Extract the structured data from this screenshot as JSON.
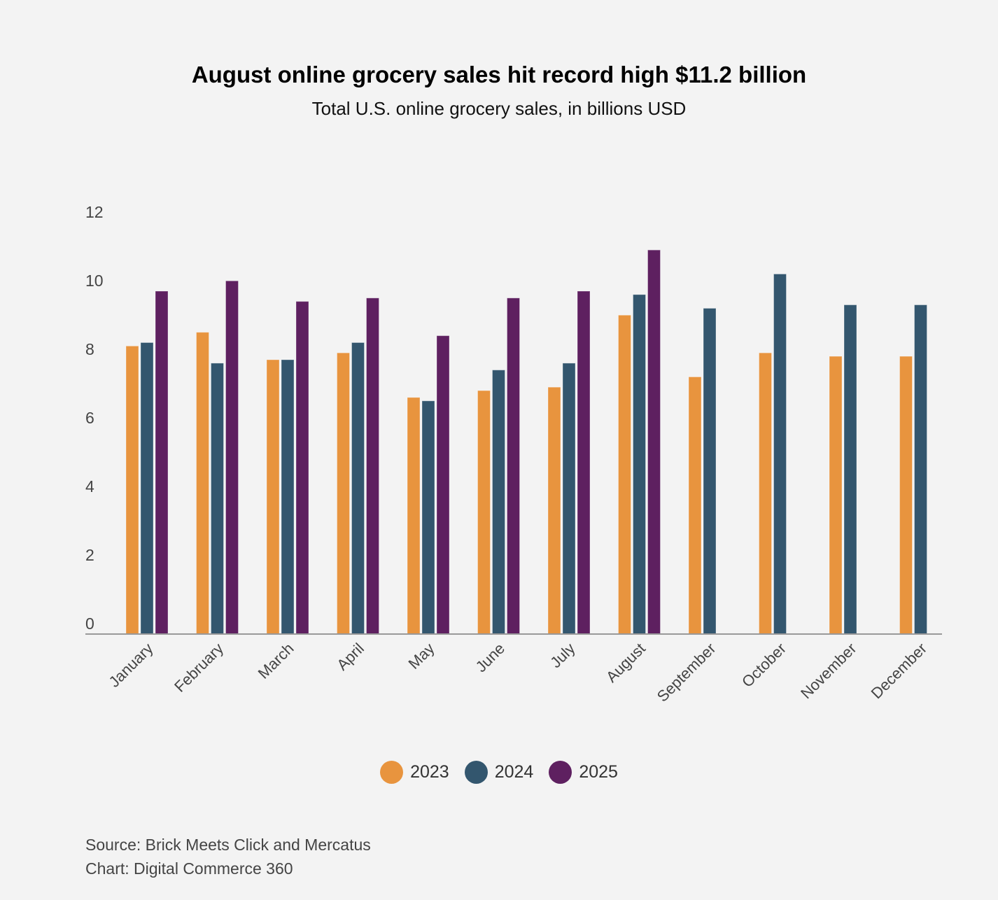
{
  "chart_data": {
    "type": "bar",
    "title": "August online grocery sales hit record high $11.2 billion",
    "subtitle": "Total U.S. online grocery sales, in billions USD",
    "categories": [
      "January",
      "February",
      "March",
      "April",
      "May",
      "June",
      "July",
      "August",
      "September",
      "October",
      "November",
      "December"
    ],
    "series": [
      {
        "name": "2023",
        "color": "#e8943e",
        "values": [
          8.4,
          8.8,
          8.0,
          8.2,
          6.9,
          7.1,
          7.2,
          9.3,
          7.5,
          8.2,
          8.1,
          8.1
        ]
      },
      {
        "name": "2024",
        "color": "#33566e",
        "values": [
          8.5,
          7.9,
          8.0,
          8.5,
          6.8,
          7.7,
          7.9,
          9.9,
          9.5,
          10.5,
          9.6,
          9.6
        ]
      },
      {
        "name": "2025",
        "color": "#5e2060",
        "values": [
          10.0,
          10.3,
          9.7,
          9.8,
          8.7,
          9.8,
          10.0,
          11.2,
          null,
          null,
          null,
          null
        ]
      }
    ],
    "yticks": [
      "0",
      "2",
      "4",
      "6",
      "8",
      "10",
      "12"
    ],
    "ylim": [
      0,
      12
    ],
    "grid": false,
    "legend_position": "bottom-center",
    "xlabel": "",
    "ylabel": ""
  },
  "notes": {
    "source": "Source: Brick Meets Click and Mercatus",
    "credit": "Chart: Digital Commerce 360"
  }
}
